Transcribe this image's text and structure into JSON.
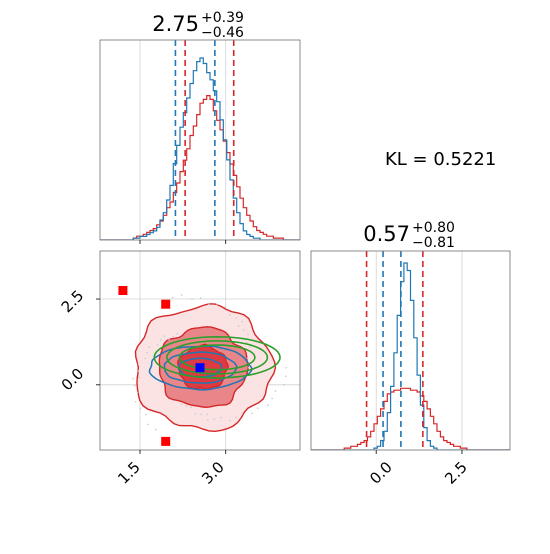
{
  "chart_data": {
    "type": "scatter",
    "subtype": "corner-plot",
    "grid": true,
    "colors": {
      "red": "#d62728",
      "blue": "#1f77b4",
      "green": "#2ca02c",
      "marker_red": "#ff0000",
      "marker_blue": "#0000ff",
      "red_fill": "#e8868a",
      "red_fill_dark": "#dd3a42"
    },
    "kl_text": "KL = 0.5221",
    "param1": {
      "title_main": "2.75",
      "title_plus": "+0.39",
      "title_minus": "−0.46",
      "range": [
        0.8,
        4.3
      ],
      "ticks": [
        1.5,
        3.0
      ],
      "tick_labels": [
        "1.5",
        "3.0"
      ],
      "blue_quantiles": [
        2.12,
        2.81
      ],
      "red_quantiles": [
        2.29,
        3.14
      ],
      "blue_hist": [
        0,
        0,
        0,
        0,
        0,
        0,
        0,
        0,
        0,
        0,
        0.01,
        0.01,
        0.02,
        0.02,
        0.03,
        0.04,
        0.05,
        0.07,
        0.11,
        0.15,
        0.22,
        0.3,
        0.42,
        0.52,
        0.62,
        0.7,
        0.78,
        0.86,
        0.93,
        0.98,
        1.0,
        0.97,
        0.92,
        0.88,
        0.82,
        0.76,
        0.66,
        0.55,
        0.44,
        0.33,
        0.23,
        0.15,
        0.09,
        0.05,
        0.03,
        0.02,
        0.01,
        0.01,
        0,
        0,
        0,
        0,
        0,
        0,
        0,
        0,
        0,
        0,
        0,
        0
      ],
      "red_hist": [
        0,
        0,
        0,
        0,
        0,
        0,
        0,
        0,
        0,
        0,
        0.01,
        0.02,
        0.02,
        0.03,
        0.04,
        0.05,
        0.06,
        0.08,
        0.1,
        0.13,
        0.17,
        0.2,
        0.25,
        0.3,
        0.36,
        0.42,
        0.48,
        0.55,
        0.6,
        0.66,
        0.72,
        0.74,
        0.76,
        0.74,
        0.68,
        0.63,
        0.58,
        0.52,
        0.46,
        0.4,
        0.34,
        0.28,
        0.22,
        0.17,
        0.13,
        0.1,
        0.07,
        0.05,
        0.04,
        0.03,
        0.02,
        0.02,
        0.01,
        0.01,
        0.01,
        0,
        0,
        0,
        0,
        0
      ]
    },
    "param2": {
      "title_main": "0.57",
      "title_plus": "+0.80",
      "title_minus": "−0.81",
      "range": [
        -1.9,
        3.9
      ],
      "ticks": [
        0.0,
        2.5
      ],
      "tick_labels": [
        "0.0",
        "2.5"
      ],
      "y_tick_labels": [
        "0.0",
        "2.5"
      ],
      "blue_quantiles": [
        0.2,
        0.72
      ],
      "red_quantiles": [
        -0.28,
        1.36
      ],
      "blue_hist": [
        0,
        0,
        0,
        0,
        0,
        0,
        0,
        0,
        0,
        0,
        0,
        0,
        0,
        0,
        0,
        0,
        0,
        0,
        0,
        0.01,
        0.02,
        0.05,
        0.1,
        0.2,
        0.34,
        0.52,
        0.72,
        0.9,
        1.0,
        0.96,
        0.8,
        0.6,
        0.4,
        0.24,
        0.12,
        0.05,
        0.02,
        0.01,
        0,
        0,
        0,
        0,
        0,
        0,
        0,
        0,
        0,
        0,
        0,
        0,
        0,
        0,
        0,
        0,
        0,
        0,
        0,
        0,
        0,
        0
      ],
      "red_hist": [
        0,
        0,
        0,
        0,
        0,
        0,
        0,
        0,
        0,
        0,
        0.01,
        0.01,
        0.02,
        0.02,
        0.03,
        0.04,
        0.05,
        0.07,
        0.1,
        0.14,
        0.18,
        0.22,
        0.26,
        0.3,
        0.31,
        0.32,
        0.32,
        0.33,
        0.33,
        0.33,
        0.32,
        0.32,
        0.31,
        0.29,
        0.26,
        0.22,
        0.18,
        0.14,
        0.1,
        0.07,
        0.05,
        0.04,
        0.03,
        0.02,
        0.02,
        0.01,
        0.01,
        0,
        0,
        0,
        0,
        0,
        0,
        0,
        0,
        0,
        0,
        0,
        0,
        0
      ]
    },
    "joint": {
      "red_mean": [
        2.6,
        0.5
      ],
      "red_sd": [
        0.5,
        0.75
      ],
      "red_levels": [
        0.2,
        0.55,
        0.85
      ],
      "blue_mean": [
        2.55,
        0.5
      ],
      "blue_sd": [
        0.42,
        0.3
      ],
      "blue_levels": [
        0.8,
        1.4,
        1.9
      ],
      "green_mean": [
        2.85,
        0.8
      ],
      "green_sd": [
        0.55,
        0.3
      ],
      "green_levels": [
        1.25,
        1.7,
        2.05
      ],
      "red_markers": [
        [
          1.2,
          2.75
        ],
        [
          1.95,
          2.35
        ],
        [
          1.95,
          -1.65
        ]
      ],
      "blue_marker": [
        2.55,
        0.5
      ]
    }
  }
}
